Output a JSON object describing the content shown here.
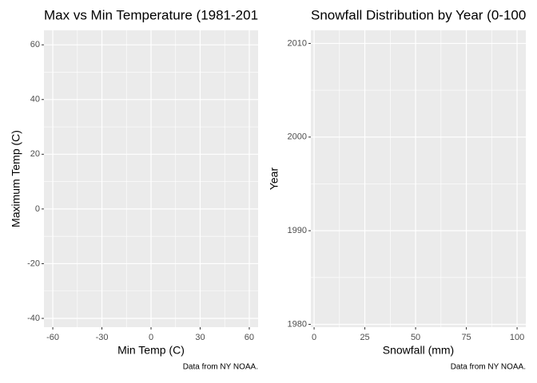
{
  "chart_data": [
    {
      "type": "scatter",
      "title": "Max vs Min Temperature (1981-201",
      "x_label": "Min Temp (C)",
      "y_label": "Maximum Temp (C)",
      "caption": "Data from NY NOAA.",
      "xlim": [
        -65.4,
        65.4
      ],
      "xticks": [
        -60,
        -30,
        0,
        30,
        60
      ],
      "ylim": [
        -43.2,
        65.3
      ],
      "yticks": [
        -40,
        -20,
        0,
        20,
        40,
        60
      ],
      "grid": true
    },
    {
      "type": "ridgeline",
      "title": "Snowfall Distribution by Year (0-100",
      "x_label": "Snowfall (mm)",
      "y_label": "Year",
      "caption": "Data from NY NOAA.",
      "xlim": [
        -1.6,
        104.3
      ],
      "xticks": [
        0,
        25,
        50,
        75,
        100
      ],
      "ylim": [
        1979.7,
        2011.4
      ],
      "yticks": [
        1980,
        1990,
        2000,
        2010
      ],
      "grid": true
    }
  ]
}
